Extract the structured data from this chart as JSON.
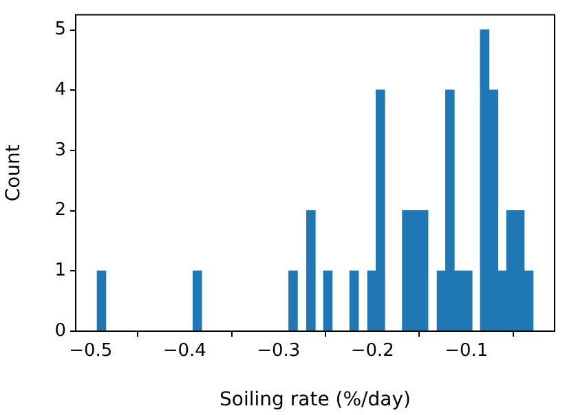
{
  "chart_data": {
    "type": "histogram",
    "xlabel": "Soiling rate (%/day)",
    "ylabel": "Count",
    "color": "#1f77b4",
    "bins": [
      -0.493,
      -0.484,
      -0.475,
      -0.465,
      -0.456,
      -0.447,
      -0.437,
      -0.428,
      -0.419,
      -0.41,
      -0.4,
      -0.391,
      -0.382,
      -0.373,
      -0.363,
      -0.354,
      -0.345,
      -0.335,
      -0.326,
      -0.317,
      -0.308,
      -0.298,
      -0.289,
      -0.28,
      -0.27,
      -0.261,
      -0.252,
      -0.243,
      -0.233,
      -0.224,
      -0.215,
      -0.205,
      -0.196,
      -0.187,
      -0.178,
      -0.168,
      -0.159,
      -0.15,
      -0.141,
      -0.131,
      -0.122,
      -0.113,
      -0.103,
      -0.094,
      -0.085,
      -0.076,
      -0.066,
      -0.057,
      -0.048,
      -0.038,
      -0.029
    ],
    "values": [
      1,
      0,
      0,
      0,
      0,
      0,
      0,
      0,
      0,
      0,
      0,
      1,
      0,
      0,
      0,
      0,
      0,
      0,
      0,
      0,
      0,
      0,
      1,
      0,
      2,
      0,
      1,
      0,
      0,
      1,
      0,
      1,
      4,
      0,
      0,
      2,
      2,
      2,
      0,
      1,
      4,
      1,
      1,
      0,
      5,
      4,
      1,
      2,
      2,
      1
    ],
    "xlim": [
      -0.516,
      -0.006
    ],
    "xticks": [
      -0.5,
      -0.4,
      -0.3,
      -0.2,
      -0.1
    ],
    "ylim": [
      0,
      5.25
    ],
    "yticks": [
      0,
      1,
      2,
      3,
      4,
      5
    ],
    "grid": false,
    "legend": false
  }
}
